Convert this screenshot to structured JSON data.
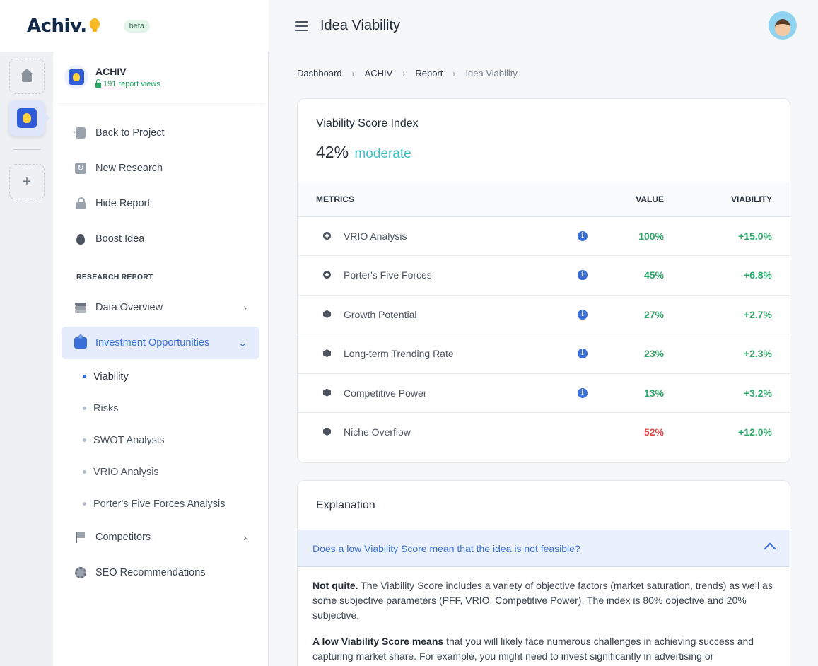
{
  "brand": {
    "logo": "Achiv.",
    "badge": "beta"
  },
  "project": {
    "name": "ACHIV",
    "views": "191 report views"
  },
  "sidebar": {
    "actions": [
      {
        "label": "Back to Project"
      },
      {
        "label": "New Research"
      },
      {
        "label": "Hide Report"
      },
      {
        "label": "Boost Idea"
      }
    ],
    "section_title": "RESEARCH REPORT",
    "report": {
      "data_overview": "Data Overview",
      "investment": "Investment Opportunities",
      "sub": [
        "Viability",
        "Risks",
        "SWOT Analysis",
        "VRIO Analysis",
        "Porter's Five Forces Analysis"
      ],
      "competitors": "Competitors",
      "seo": "SEO Recommendations"
    }
  },
  "header": {
    "title": "Idea Viability"
  },
  "breadcrumb": [
    "Dashboard",
    "ACHIV",
    "Report",
    "Idea Viability"
  ],
  "score": {
    "title": "Viability Score Index",
    "value": "42%",
    "label": "moderate"
  },
  "table": {
    "headers": {
      "metrics": "METRICS",
      "value": "VALUE",
      "viability": "VIABILITY"
    },
    "rows": [
      {
        "name": "VRIO Analysis",
        "value": "100%",
        "viability": "+15.0%"
      },
      {
        "name": "Porter's Five Forces",
        "value": "45%",
        "viability": "+6.8%"
      },
      {
        "name": "Growth Potential",
        "value": "27%",
        "viability": "+2.7%"
      },
      {
        "name": "Long-term Trending Rate",
        "value": "23%",
        "viability": "+2.3%"
      },
      {
        "name": "Competitive Power",
        "value": "13%",
        "viability": "+3.2%"
      },
      {
        "name": "Niche Overflow",
        "value": "52%",
        "viability": "+12.0%"
      }
    ]
  },
  "explanation": {
    "title": "Explanation",
    "question": "Does a low Viability Score mean that the idea is not feasible?",
    "p1_bold": "Not quite.",
    "p1_text": " The Viability Score includes a variety of objective factors (market saturation, trends) as well as some subjective parameters (PFF, VRIO, Competitive Power). The index is 80% objective and 20% subjective.",
    "p2_bold": "A low Viability Score means",
    "p2_text": " that you will likely face numerous challenges in achieving success and capturing market share. For example, you might need to invest significantly in advertising or"
  },
  "colors": {
    "accent": "#3a6fd8",
    "positive": "#2fa86a",
    "negative": "#e04848",
    "moderate": "#3bbfc6"
  }
}
